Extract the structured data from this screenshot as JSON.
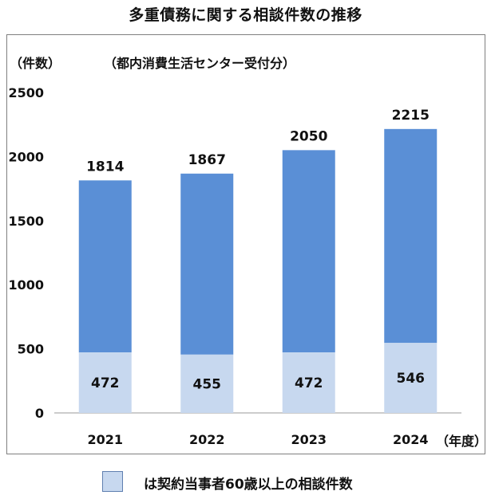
{
  "header": {
    "title": "多重債務に関する相談件数の推移"
  },
  "chart_data": {
    "type": "bar",
    "title": "多重債務に関する相談件数の推移",
    "subtitle": "（都内消費生活センター受付分）",
    "ylabel": "（件数）",
    "xlabel": "（年度）",
    "categories": [
      "2021",
      "2022",
      "2023",
      "2024"
    ],
    "series": [
      {
        "name": "は契約当事者60歳以上の相談件数",
        "values": [
          472,
          455,
          472,
          546
        ],
        "color": "#c7d8ef"
      },
      {
        "values": [
          1814,
          1867,
          2050,
          2215
        ],
        "color": "#5a8fd6"
      }
    ],
    "ylim": [
      0,
      2500
    ],
    "yticks": [
      0,
      500,
      1000,
      1500,
      2000,
      2500
    ],
    "grid": false,
    "legend_position": "bottom"
  }
}
